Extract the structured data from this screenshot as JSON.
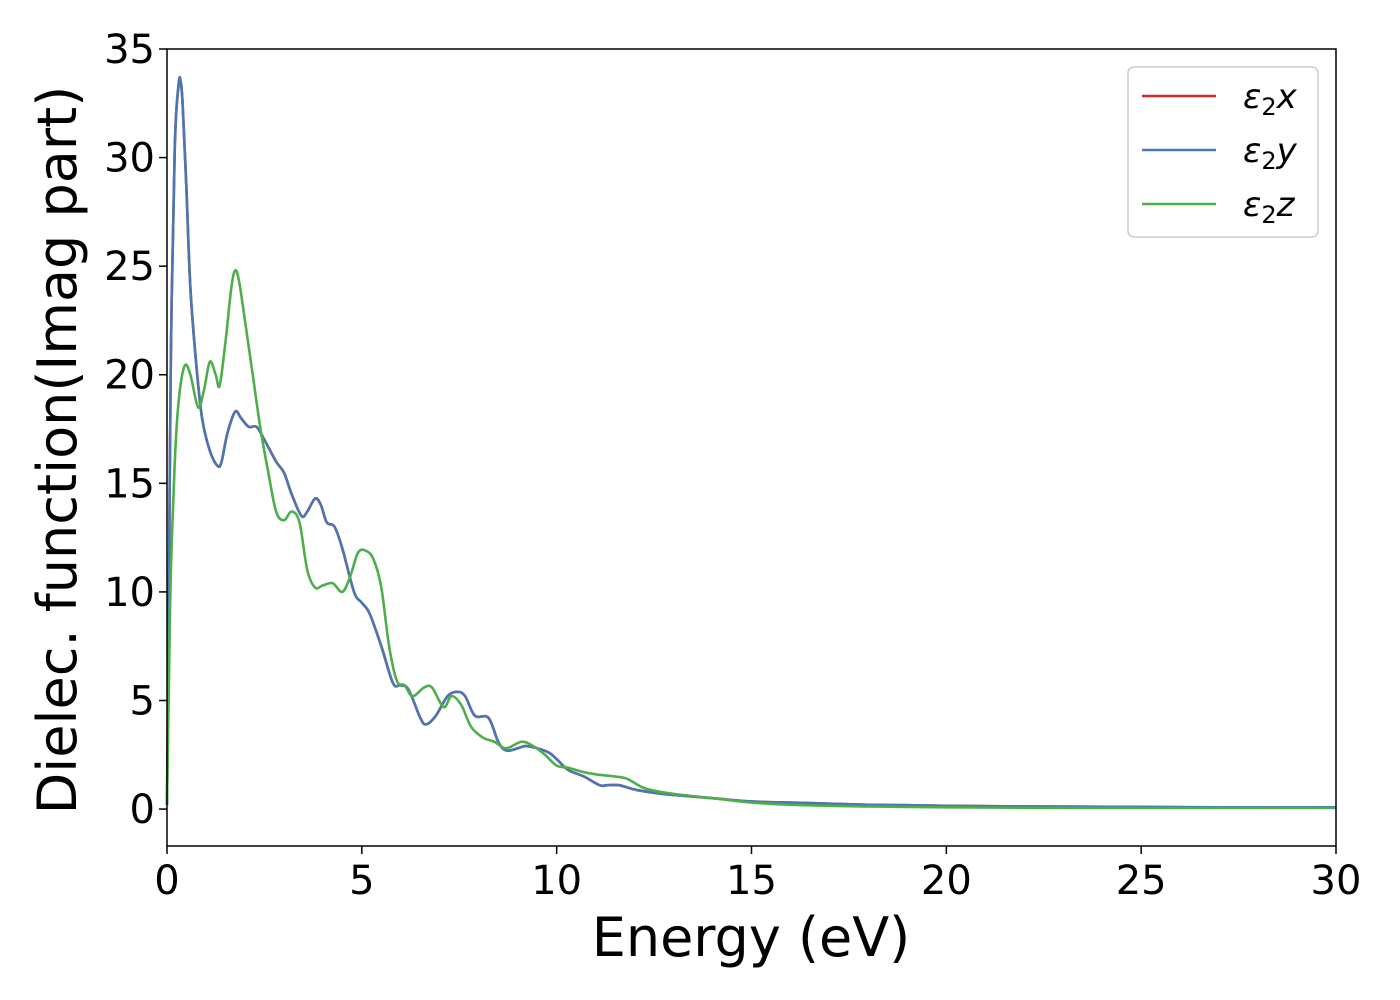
{
  "chart_data": {
    "type": "line",
    "xlabel": "Energy (eV)",
    "ylabel": "Dielec. function(Imag part)",
    "xlim": [
      0,
      30
    ],
    "ylim": [
      -1.7,
      35
    ],
    "xticks": [
      0,
      5,
      10,
      15,
      20,
      25,
      30
    ],
    "yticks": [
      0,
      5,
      10,
      15,
      20,
      25,
      30,
      35
    ],
    "grid": false,
    "legend_position": "top-right",
    "series": [
      {
        "name": "ε₂x",
        "legend_symbol": "ε",
        "legend_sub": "2",
        "legend_tail": "x",
        "color": "#d62728",
        "x": [
          0,
          0.05,
          0.1,
          0.2,
          0.3,
          0.35,
          0.4,
          0.5,
          0.6,
          0.75,
          0.9,
          1.1,
          1.3,
          1.4,
          1.55,
          1.75,
          1.9,
          2.1,
          2.3,
          2.5,
          2.8,
          3.0,
          3.2,
          3.45,
          3.6,
          3.8,
          3.95,
          4.1,
          4.3,
          4.5,
          4.8,
          5.0,
          5.2,
          5.5,
          5.8,
          6.0,
          6.2,
          6.5,
          6.65,
          6.9,
          7.2,
          7.45,
          7.65,
          7.9,
          8.25,
          8.5,
          8.7,
          9.0,
          9.2,
          9.5,
          9.8,
          10.0,
          10.3,
          10.7,
          11.1,
          11.3,
          11.6,
          12.0,
          12.5,
          13.0,
          14.0,
          15.0,
          16.0,
          17.0,
          18.0,
          19.0,
          20.0,
          22.0,
          25.0,
          27.0,
          30.0
        ],
        "y": [
          0.2,
          10.0,
          21.0,
          30.5,
          33.4,
          33.5,
          32.5,
          28.5,
          24.0,
          20.5,
          18.0,
          16.5,
          15.8,
          16.0,
          17.3,
          18.3,
          18.0,
          17.6,
          17.6,
          17.0,
          16.0,
          15.5,
          14.5,
          13.5,
          13.7,
          14.3,
          14.0,
          13.2,
          13.0,
          12.0,
          10.0,
          9.5,
          9.0,
          7.5,
          5.8,
          5.7,
          5.5,
          4.2,
          3.9,
          4.3,
          5.2,
          5.4,
          5.2,
          4.3,
          4.2,
          3.1,
          2.7,
          2.8,
          2.9,
          2.8,
          2.6,
          2.3,
          1.8,
          1.5,
          1.1,
          1.1,
          1.1,
          0.9,
          0.75,
          0.65,
          0.5,
          0.35,
          0.3,
          0.25,
          0.2,
          0.18,
          0.15,
          0.12,
          0.1,
          0.08,
          0.08
        ]
      },
      {
        "name": "ε₂y",
        "legend_symbol": "ε",
        "legend_sub": "2",
        "legend_tail": "y",
        "color": "#4a77b4",
        "x": [
          0,
          0.05,
          0.1,
          0.2,
          0.3,
          0.35,
          0.4,
          0.5,
          0.6,
          0.75,
          0.9,
          1.1,
          1.3,
          1.4,
          1.55,
          1.75,
          1.9,
          2.1,
          2.3,
          2.5,
          2.8,
          3.0,
          3.2,
          3.45,
          3.6,
          3.8,
          3.95,
          4.1,
          4.3,
          4.5,
          4.8,
          5.0,
          5.2,
          5.5,
          5.8,
          6.0,
          6.2,
          6.5,
          6.65,
          6.9,
          7.2,
          7.45,
          7.65,
          7.9,
          8.25,
          8.5,
          8.7,
          9.0,
          9.2,
          9.5,
          9.8,
          10.0,
          10.3,
          10.7,
          11.1,
          11.3,
          11.6,
          12.0,
          12.5,
          13.0,
          14.0,
          15.0,
          16.0,
          17.0,
          18.0,
          19.0,
          20.0,
          22.0,
          25.0,
          27.0,
          30.0
        ],
        "y": [
          0.2,
          10.0,
          21.0,
          30.5,
          33.4,
          33.5,
          32.5,
          28.5,
          24.0,
          20.5,
          18.0,
          16.5,
          15.8,
          16.0,
          17.3,
          18.3,
          18.0,
          17.6,
          17.6,
          17.0,
          16.0,
          15.5,
          14.5,
          13.5,
          13.7,
          14.3,
          14.0,
          13.2,
          13.0,
          12.0,
          10.0,
          9.5,
          9.0,
          7.5,
          5.8,
          5.7,
          5.5,
          4.2,
          3.9,
          4.3,
          5.2,
          5.4,
          5.2,
          4.3,
          4.2,
          3.1,
          2.7,
          2.8,
          2.9,
          2.8,
          2.6,
          2.3,
          1.8,
          1.5,
          1.1,
          1.1,
          1.1,
          0.9,
          0.75,
          0.65,
          0.5,
          0.35,
          0.3,
          0.25,
          0.2,
          0.18,
          0.15,
          0.12,
          0.1,
          0.08,
          0.08
        ]
      },
      {
        "name": "ε₂z",
        "legend_symbol": "ε",
        "legend_sub": "2",
        "legend_tail": "z",
        "color": "#4daf4a",
        "x": [
          0,
          0.05,
          0.1,
          0.2,
          0.3,
          0.45,
          0.6,
          0.8,
          0.95,
          1.1,
          1.25,
          1.35,
          1.5,
          1.65,
          1.75,
          1.85,
          2.0,
          2.2,
          2.4,
          2.6,
          2.8,
          3.0,
          3.2,
          3.4,
          3.6,
          3.8,
          4.0,
          4.25,
          4.5,
          4.7,
          4.9,
          5.1,
          5.3,
          5.5,
          5.7,
          5.9,
          6.1,
          6.3,
          6.6,
          6.8,
          7.1,
          7.3,
          7.55,
          7.8,
          8.1,
          8.4,
          8.7,
          9.1,
          9.4,
          9.7,
          10.0,
          10.3,
          10.7,
          11.0,
          11.5,
          11.8,
          12.2,
          12.5,
          13.0,
          14.0,
          15.0,
          16.0,
          17.0,
          18.0,
          19.0,
          20.0,
          22.0,
          25.0,
          27.0,
          30.0
        ],
        "y": [
          0.2,
          6.0,
          11.0,
          16.0,
          18.8,
          20.4,
          20.0,
          18.5,
          19.3,
          20.6,
          20.0,
          19.5,
          21.5,
          24.0,
          24.8,
          24.3,
          22.5,
          20.0,
          17.5,
          15.5,
          13.7,
          13.3,
          13.7,
          13.2,
          11.0,
          10.2,
          10.3,
          10.4,
          10.0,
          10.7,
          11.8,
          11.9,
          11.5,
          10.2,
          7.5,
          5.9,
          5.7,
          5.2,
          5.6,
          5.6,
          4.7,
          5.2,
          4.8,
          3.8,
          3.3,
          3.1,
          2.8,
          3.1,
          2.9,
          2.5,
          2.0,
          1.9,
          1.7,
          1.6,
          1.5,
          1.4,
          1.0,
          0.85,
          0.7,
          0.5,
          0.3,
          0.2,
          0.15,
          0.12,
          0.1,
          0.08,
          0.06,
          0.05,
          0.05,
          0.05
        ]
      }
    ]
  }
}
